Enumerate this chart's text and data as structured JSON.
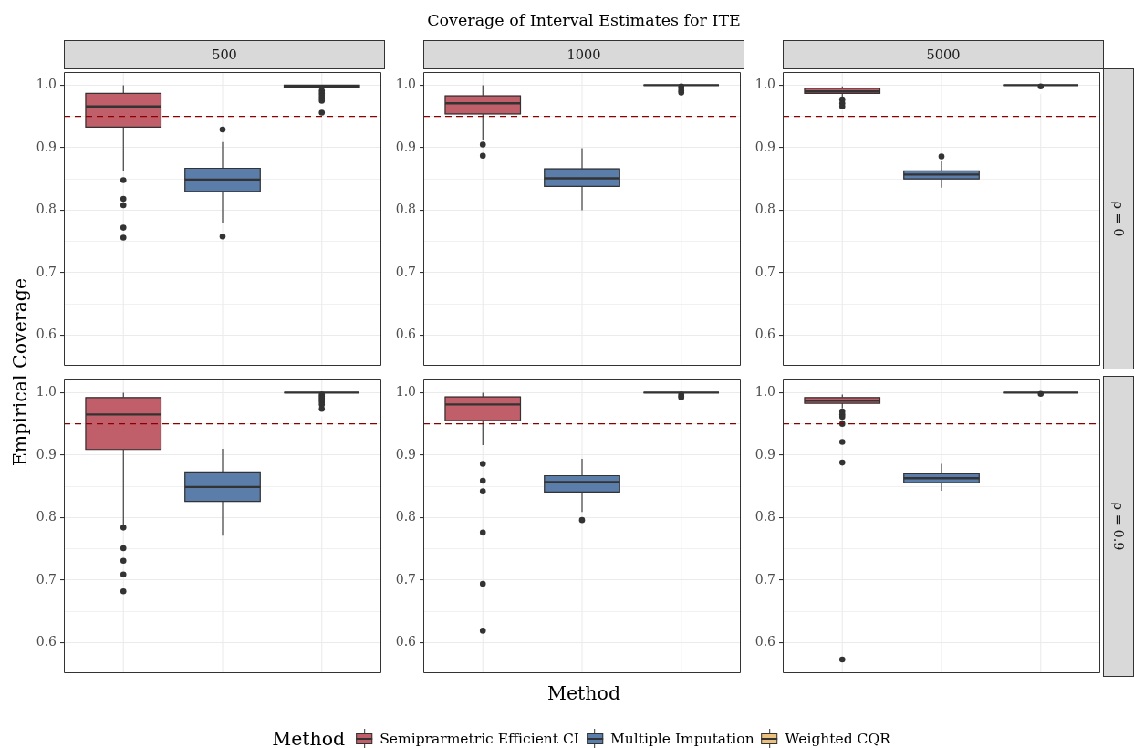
{
  "chart_data": [
    {
      "type": "box",
      "subtitle": "500",
      "ylabel": "Empirical Coverage",
      "categories": [
        null,
        null,
        null
      ],
      "series": [
        {
          "color": "#c05e6a",
          "boxes": [
            {
              "low": 0.862,
              "q1": 0.933,
              "median": 0.966,
              "q3": 0.987,
              "high": 1,
              "outliers": [
                0.848,
                0.818,
                0.808,
                0.772,
                0.756
              ]
            },
            null,
            null
          ]
        },
        {
          "color": "#5b7daa",
          "boxes": [
            null,
            {
              "low": 0.779,
              "q1": 0.83,
              "median": 0.849,
              "q3": 0.867,
              "high": 0.909,
              "outliers": [
                0.929,
                0.758
              ]
            },
            null
          ]
        },
        {
          "color": "#e8c27e",
          "boxes": [
            null,
            null,
            {
              "low": 0.996,
              "q1": 0.996,
              "median": 0.998,
              "q3": 1,
              "high": 1,
              "outliers": [
                0.991,
                0.987,
                0.983,
                0.979,
                0.975,
                0.956
              ]
            }
          ]
        }
      ],
      "ylim": [
        0.551,
        1.021
      ],
      "yticks": [
        0.6,
        {
          "value": 0.65,
          "label": null
        },
        0.7,
        {
          "value": 0.75,
          "label": null
        },
        0.8,
        {
          "value": 0.85,
          "label": null
        },
        0.9,
        {
          "value": 0.95,
          "label": null
        },
        {
          "value": 1,
          "label": "1.0"
        }
      ],
      "ref_lines": [
        {
          "axis": "y",
          "value": 0.95,
          "color": "#8b0000",
          "line_style": "dashed"
        }
      ],
      "grid": true,
      "tick_labels": "y"
    },
    {
      "type": "box",
      "title": "Coverage of Interval Estimates for ITE",
      "subtitle": "1000",
      "categories": [
        null,
        null,
        null
      ],
      "series": [
        {
          "color": "#c05e6a",
          "boxes": [
            {
              "low": 0.913,
              "q1": 0.954,
              "median": 0.971,
              "q3": 0.983,
              "high": 1,
              "outliers": [
                0.905,
                0.887
              ]
            },
            null,
            null
          ]
        },
        {
          "color": "#5b7daa",
          "boxes": [
            null,
            {
              "low": 0.8,
              "q1": 0.838,
              "median": 0.851,
              "q3": 0.866,
              "high": 0.899
            },
            null
          ]
        },
        {
          "color": "#e8c27e",
          "boxes": [
            null,
            null,
            {
              "low": 1,
              "q1": 1,
              "median": 1,
              "q3": 1,
              "high": 1,
              "outliers": [
                0.998,
                0.995,
                0.991,
                0.988
              ]
            }
          ]
        }
      ],
      "ylim": [
        0.551,
        1.021
      ],
      "yticks": [
        0.6,
        {
          "value": 0.65,
          "label": null
        },
        0.7,
        {
          "value": 0.75,
          "label": null
        },
        0.8,
        {
          "value": 0.85,
          "label": null
        },
        0.9,
        {
          "value": 0.95,
          "label": null
        },
        {
          "value": 1,
          "label": "1.0"
        }
      ],
      "ref_lines": [
        {
          "axis": "y",
          "value": 0.95,
          "color": "#8b0000",
          "line_style": "dashed"
        }
      ],
      "grid": true,
      "tick_labels": "y"
    },
    {
      "type": "box",
      "subtitle": "5000",
      "y2label": "ρ = 0",
      "categories": [
        null,
        null,
        null
      ],
      "series": [
        {
          "color": "#c05e6a",
          "boxes": [
            {
              "low": 0.981,
              "q1": 0.987,
              "median": 0.99,
              "q3": 0.995,
              "high": 0.998,
              "outliers": [
                0.977,
                0.971,
                0.966
              ]
            },
            null,
            null
          ]
        },
        {
          "color": "#5b7daa",
          "boxes": [
            null,
            {
              "low": 0.836,
              "q1": 0.85,
              "median": 0.857,
              "q3": 0.863,
              "high": 0.878,
              "outliers": [
                0.886
              ]
            },
            null
          ]
        },
        {
          "color": "#e8c27e",
          "boxes": [
            null,
            null,
            {
              "low": 1,
              "q1": 1,
              "median": 1,
              "q3": 1,
              "high": 1,
              "outliers": [
                0.998
              ]
            }
          ]
        }
      ],
      "ylim": [
        0.551,
        1.021
      ],
      "yticks": [
        0.6,
        {
          "value": 0.65,
          "label": null
        },
        0.7,
        {
          "value": 0.75,
          "label": null
        },
        0.8,
        {
          "value": 0.85,
          "label": null
        },
        0.9,
        {
          "value": 0.95,
          "label": null
        },
        {
          "value": 1,
          "label": "1.0"
        }
      ],
      "ref_lines": [
        {
          "axis": "y",
          "value": 0.95,
          "color": "#8b0000",
          "line_style": "dashed"
        }
      ],
      "grid": true,
      "tick_labels": "y"
    },
    {
      "type": "box",
      "categories": [
        null,
        null,
        null
      ],
      "series": [
        {
          "color": "#c05e6a",
          "boxes": [
            {
              "low": 0.789,
              "q1": 0.909,
              "median": 0.965,
              "q3": 0.992,
              "high": 1,
              "outliers": [
                0.784,
                0.751,
                0.731,
                0.709,
                0.682
              ]
            },
            null,
            null
          ]
        },
        {
          "color": "#5b7daa",
          "boxes": [
            null,
            {
              "low": 0.771,
              "q1": 0.826,
              "median": 0.849,
              "q3": 0.873,
              "high": 0.91
            },
            null
          ]
        },
        {
          "color": "#e8c27e",
          "boxes": [
            null,
            null,
            {
              "low": 1,
              "q1": 1,
              "median": 1,
              "q3": 1,
              "high": 1,
              "outliers": [
                0.997,
                0.994,
                0.991,
                0.988,
                0.985,
                0.981,
                0.974
              ]
            }
          ]
        }
      ],
      "ylim": [
        0.551,
        1.021
      ],
      "yticks": [
        0.6,
        {
          "value": 0.65,
          "label": null
        },
        0.7,
        {
          "value": 0.75,
          "label": null
        },
        0.8,
        {
          "value": 0.85,
          "label": null
        },
        0.9,
        {
          "value": 0.95,
          "label": null
        },
        {
          "value": 1,
          "label": "1.0"
        }
      ],
      "ref_lines": [
        {
          "axis": "y",
          "value": 0.95,
          "color": "#8b0000",
          "line_style": "dashed"
        }
      ],
      "grid": true,
      "tick_labels": "y"
    },
    {
      "type": "box",
      "xlabel": "Method",
      "legend": "bottom",
      "legend_title": "Method",
      "categories": [
        null,
        null,
        null
      ],
      "series": [
        {
          "name": "Semiprarmetric Efficient CI",
          "color": "#c05e6a",
          "boxes": [
            {
              "low": 0.916,
              "q1": 0.955,
              "median": 0.981,
              "q3": 0.993,
              "high": 1,
              "outliers": [
                0.886,
                0.859,
                0.842,
                0.776,
                0.694,
                0.619
              ]
            },
            null,
            null
          ]
        },
        {
          "name": "Multiple Imputation",
          "color": "#5b7daa",
          "boxes": [
            null,
            {
              "low": 0.809,
              "q1": 0.841,
              "median": 0.857,
              "q3": 0.867,
              "high": 0.894,
              "outliers": [
                0.796
              ]
            },
            null
          ]
        },
        {
          "name": "Weighted CQR",
          "color": "#e8c27e",
          "boxes": [
            null,
            null,
            {
              "low": 1,
              "q1": 1,
              "median": 1,
              "q3": 1,
              "high": 1,
              "outliers": [
                0.997,
                0.994,
                0.992
              ]
            }
          ]
        }
      ],
      "ylim": [
        0.551,
        1.021
      ],
      "yticks": [
        0.6,
        {
          "value": 0.65,
          "label": null
        },
        0.7,
        {
          "value": 0.75,
          "label": null
        },
        0.8,
        {
          "value": 0.85,
          "label": null
        },
        0.9,
        {
          "value": 0.95,
          "label": null
        },
        {
          "value": 1,
          "label": "1.0"
        }
      ],
      "ref_lines": [
        {
          "axis": "y",
          "value": 0.95,
          "color": "#8b0000",
          "line_style": "dashed"
        }
      ],
      "grid": true,
      "tick_labels": "y"
    },
    {
      "type": "box",
      "y2label": "ρ = 0.9",
      "categories": [
        null,
        null,
        null
      ],
      "series": [
        {
          "color": "#c05e6a",
          "boxes": [
            {
              "low": 0.975,
              "q1": 0.983,
              "median": 0.987,
              "q3": 0.992,
              "high": 0.997,
              "outliers": [
                0.97,
                0.965,
                0.961,
                0.95,
                0.921,
                0.888,
                0.573
              ]
            },
            null,
            null
          ]
        },
        {
          "color": "#5b7daa",
          "boxes": [
            null,
            {
              "low": 0.843,
              "q1": 0.856,
              "median": 0.863,
              "q3": 0.87,
              "high": 0.886
            },
            null
          ]
        },
        {
          "color": "#e8c27e",
          "boxes": [
            null,
            null,
            {
              "low": 1,
              "q1": 1,
              "median": 1,
              "q3": 1,
              "high": 1,
              "outliers": [
                0.998
              ]
            }
          ]
        }
      ],
      "ylim": [
        0.551,
        1.021
      ],
      "yticks": [
        0.6,
        {
          "value": 0.65,
          "label": null
        },
        0.7,
        {
          "value": 0.75,
          "label": null
        },
        0.8,
        {
          "value": 0.85,
          "label": null
        },
        0.9,
        {
          "value": 0.95,
          "label": null
        },
        {
          "value": 1,
          "label": "1.0"
        }
      ],
      "ref_lines": [
        {
          "axis": "y",
          "value": 0.95,
          "color": "#8b0000",
          "line_style": "dashed"
        }
      ],
      "grid": true,
      "tick_labels": "y"
    }
  ]
}
